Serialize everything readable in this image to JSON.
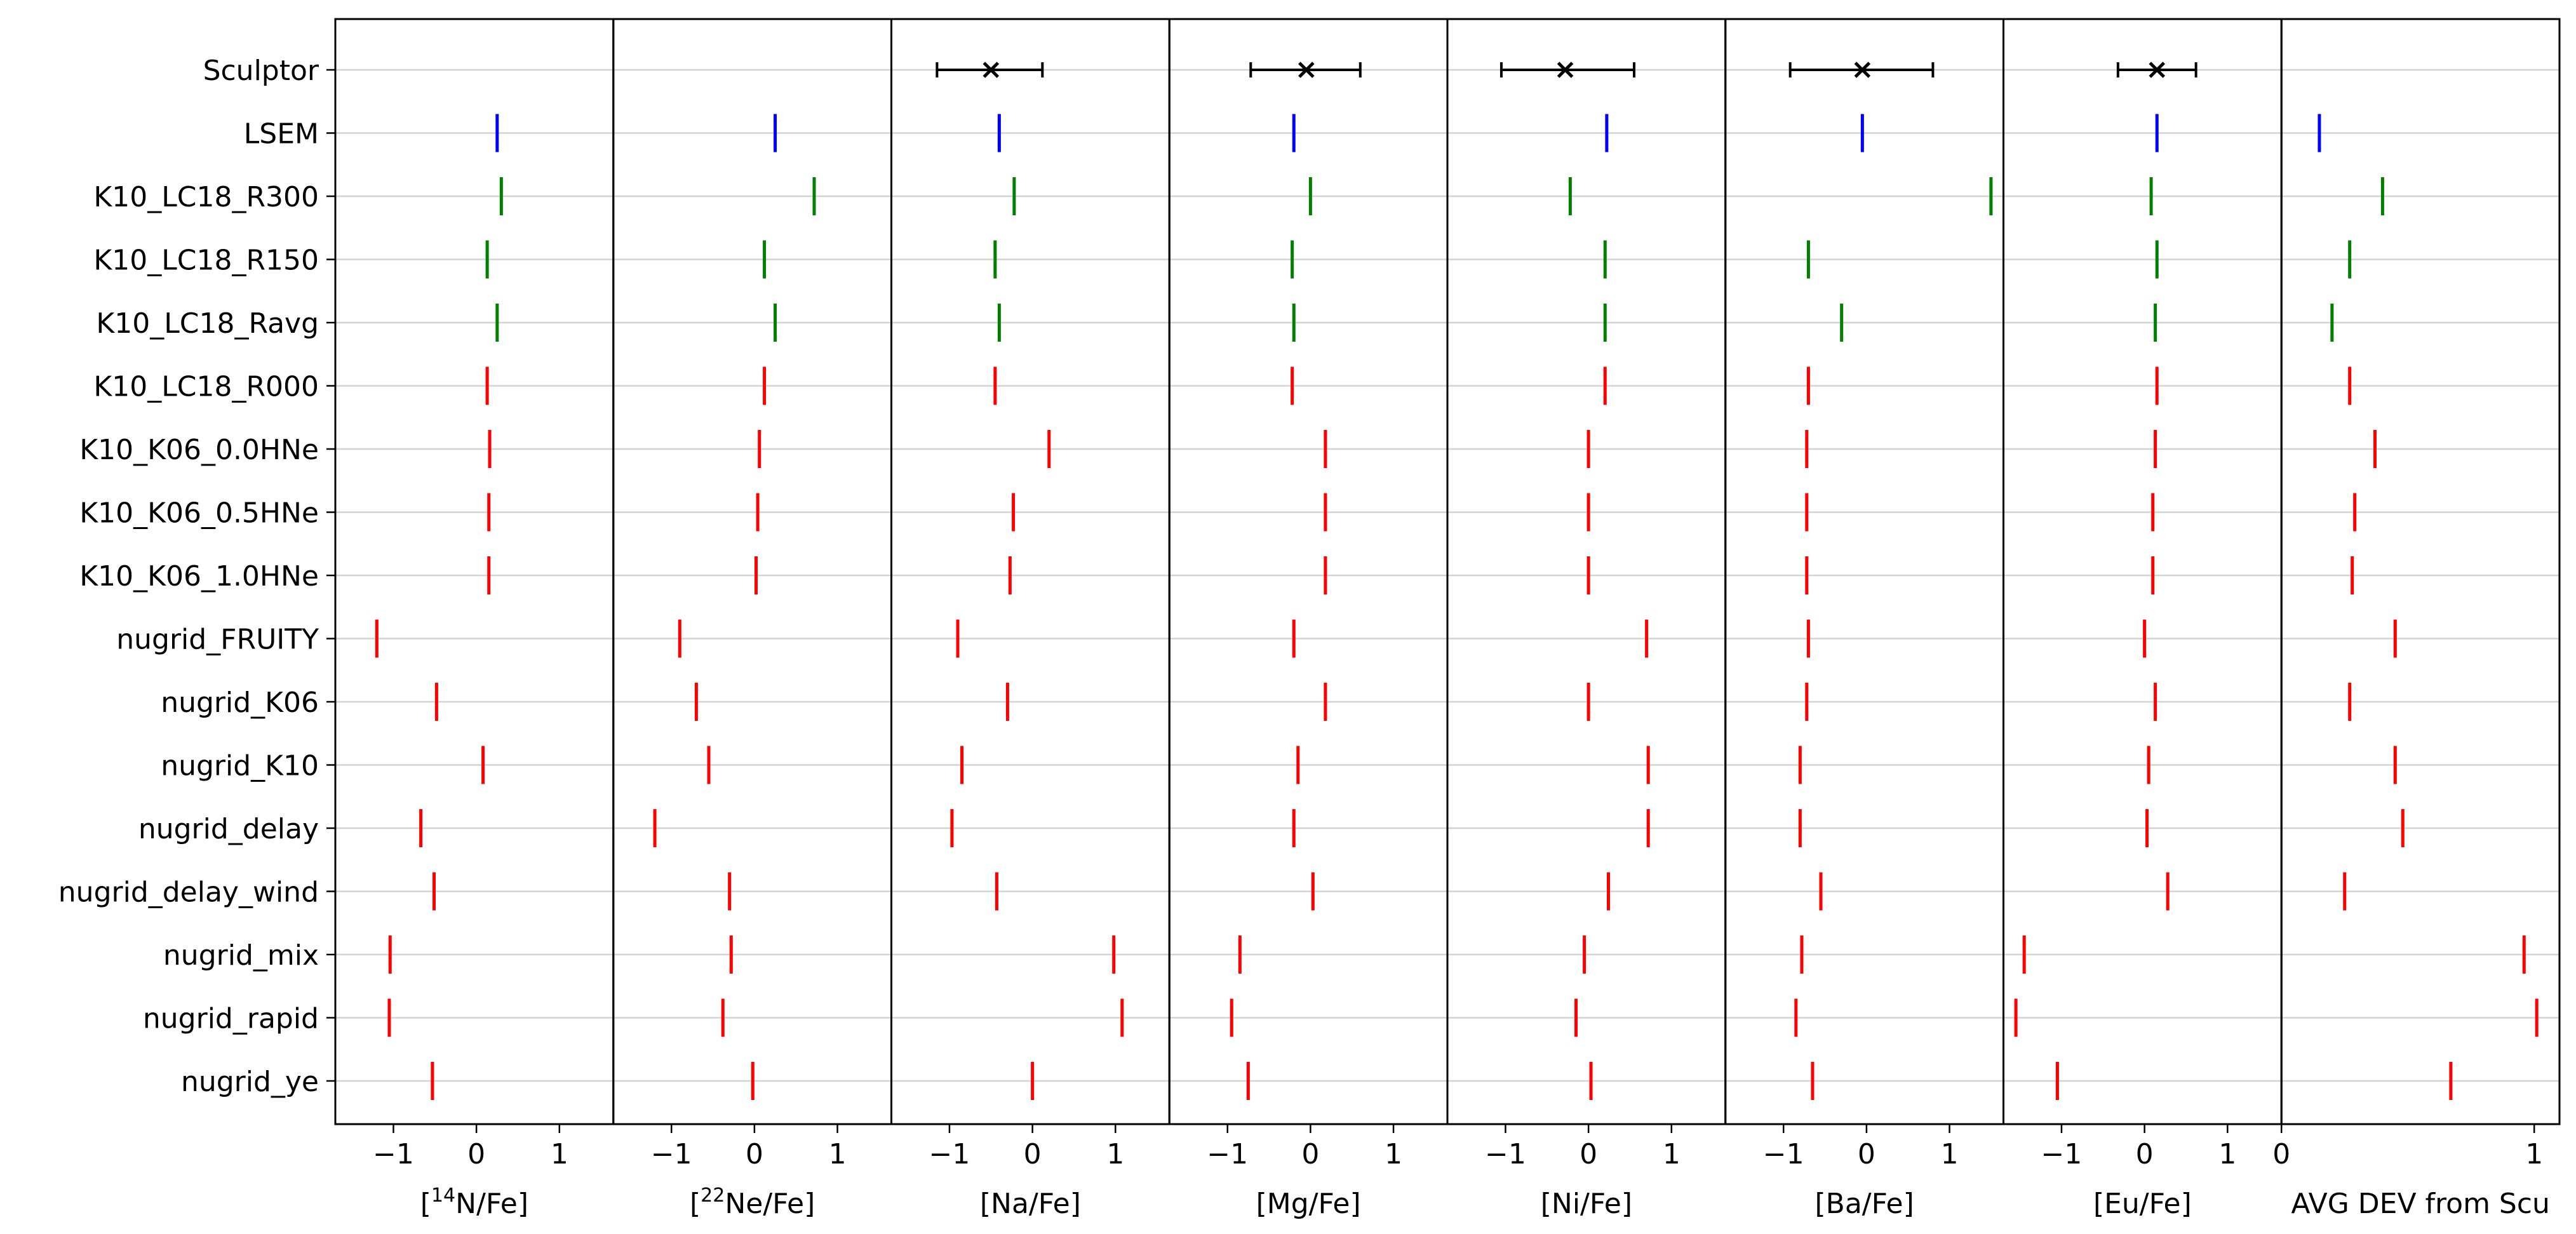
{
  "chart_data": {
    "type": "scatter",
    "row_labels": [
      "Sculptor",
      "LSEM",
      "K10_LC18_R300",
      "K10_LC18_R150",
      "K10_LC18_Ravg",
      "K10_LC18_R000",
      "K10_K06_0.0HNe",
      "K10_K06_0.5HNe",
      "K10_K06_1.0HNe",
      "nugrid_FRUITY",
      "nugrid_K06",
      "nugrid_K10",
      "nugrid_delay",
      "nugrid_delay_wind",
      "nugrid_mix",
      "nugrid_rapid",
      "nugrid_ye"
    ],
    "row_colors": [
      "#000000",
      "#0000ff",
      "#008000",
      "#008000",
      "#008000",
      "#ff0000",
      "#ff0000",
      "#ff0000",
      "#ff0000",
      "#ff0000",
      "#ff0000",
      "#ff0000",
      "#ff0000",
      "#ff0000",
      "#ff0000",
      "#ff0000",
      "#ff0000"
    ],
    "panels": [
      {
        "sup": "14",
        "label_pre": "[",
        "label_post": "N/Fe]",
        "xlim": [
          -1.7,
          1.65
        ],
        "ticks": [
          -1,
          0,
          1
        ],
        "tick_labels": [
          "−1",
          "0",
          "1"
        ],
        "observed": null,
        "values": [
          null,
          0.25,
          0.3,
          0.13,
          0.25,
          0.13,
          0.16,
          0.15,
          0.15,
          -1.2,
          -0.48,
          0.08,
          -0.67,
          -0.51,
          -1.04,
          -1.05,
          -0.53
        ]
      },
      {
        "sup": "22",
        "label_pre": "[",
        "label_post": "Ne/Fe]",
        "xlim": [
          -1.7,
          1.65
        ],
        "ticks": [
          -1,
          0,
          1
        ],
        "tick_labels": [
          "−1",
          "0",
          "1"
        ],
        "observed": null,
        "values": [
          null,
          0.25,
          0.72,
          0.12,
          0.25,
          0.12,
          0.06,
          0.04,
          0.02,
          -0.9,
          -0.7,
          -0.55,
          -1.2,
          -0.3,
          -0.28,
          -0.38,
          -0.02
        ]
      },
      {
        "sup": "",
        "label_pre": "",
        "label_post": "[Na/Fe]",
        "xlim": [
          -1.7,
          1.65
        ],
        "ticks": [
          -1,
          0,
          1
        ],
        "tick_labels": [
          "−1",
          "0",
          "1"
        ],
        "observed": {
          "value": -0.5,
          "err_low": -1.15,
          "err_high": 0.12
        },
        "values": [
          null,
          -0.4,
          -0.22,
          -0.45,
          -0.4,
          -0.45,
          0.2,
          -0.23,
          -0.27,
          -0.9,
          -0.3,
          -0.85,
          -0.97,
          -0.43,
          0.98,
          1.08,
          0.0
        ]
      },
      {
        "sup": "",
        "label_pre": "",
        "label_post": "[Mg/Fe]",
        "xlim": [
          -1.7,
          1.65
        ],
        "ticks": [
          -1,
          0,
          1
        ],
        "tick_labels": [
          "−1",
          "0",
          "1"
        ],
        "observed": {
          "value": -0.05,
          "err_low": -0.72,
          "err_high": 0.6
        },
        "values": [
          null,
          -0.2,
          0.0,
          -0.22,
          -0.2,
          -0.22,
          0.18,
          0.18,
          0.18,
          -0.2,
          0.18,
          -0.15,
          -0.2,
          0.03,
          -0.85,
          -0.95,
          -0.75
        ]
      },
      {
        "sup": "",
        "label_pre": "",
        "label_post": "[Ni/Fe]",
        "xlim": [
          -1.7,
          1.65
        ],
        "ticks": [
          -1,
          0,
          1
        ],
        "tick_labels": [
          "−1",
          "0",
          "1"
        ],
        "observed": {
          "value": -0.28,
          "err_low": -1.05,
          "err_high": 0.55
        },
        "values": [
          null,
          0.22,
          -0.22,
          0.2,
          0.2,
          0.2,
          0.0,
          0.0,
          0.0,
          0.7,
          0.0,
          0.72,
          0.72,
          0.24,
          -0.05,
          -0.15,
          0.03
        ]
      },
      {
        "sup": "",
        "label_pre": "",
        "label_post": "[Ba/Fe]",
        "xlim": [
          -1.7,
          1.65
        ],
        "ticks": [
          -1,
          0,
          1
        ],
        "tick_labels": [
          "−1",
          "0",
          "1"
        ],
        "observed": {
          "value": -0.05,
          "err_low": -0.92,
          "err_high": 0.8
        },
        "values": [
          null,
          -0.05,
          1.5,
          -0.7,
          -0.3,
          -0.7,
          -0.72,
          -0.72,
          -0.72,
          -0.7,
          -0.72,
          -0.8,
          -0.8,
          -0.55,
          -0.78,
          -0.85,
          -0.65
        ]
      },
      {
        "sup": "",
        "label_pre": "",
        "label_post": "[Eu/Fe]",
        "xlim": [
          -1.7,
          1.65
        ],
        "ticks": [
          -1,
          0,
          1
        ],
        "tick_labels": [
          "−1",
          "0",
          "1"
        ],
        "observed": {
          "value": 0.15,
          "err_low": -0.32,
          "err_high": 0.62
        },
        "values": [
          null,
          0.15,
          0.08,
          0.15,
          0.13,
          0.15,
          0.13,
          0.1,
          0.1,
          0.0,
          0.13,
          0.05,
          0.03,
          0.28,
          -1.45,
          -1.55,
          -1.05
        ]
      },
      {
        "sup": "",
        "label_pre": "",
        "label_post": "AVG DEV from Scu",
        "xlim": [
          0,
          1.1
        ],
        "ticks": [
          0,
          1
        ],
        "tick_labels": [
          "0",
          "1"
        ],
        "observed": null,
        "values": [
          null,
          0.15,
          0.4,
          0.27,
          0.2,
          0.27,
          0.37,
          0.29,
          0.28,
          0.45,
          0.27,
          0.45,
          0.48,
          0.25,
          0.96,
          1.01,
          0.67
        ]
      }
    ],
    "grid": "horizontal"
  }
}
